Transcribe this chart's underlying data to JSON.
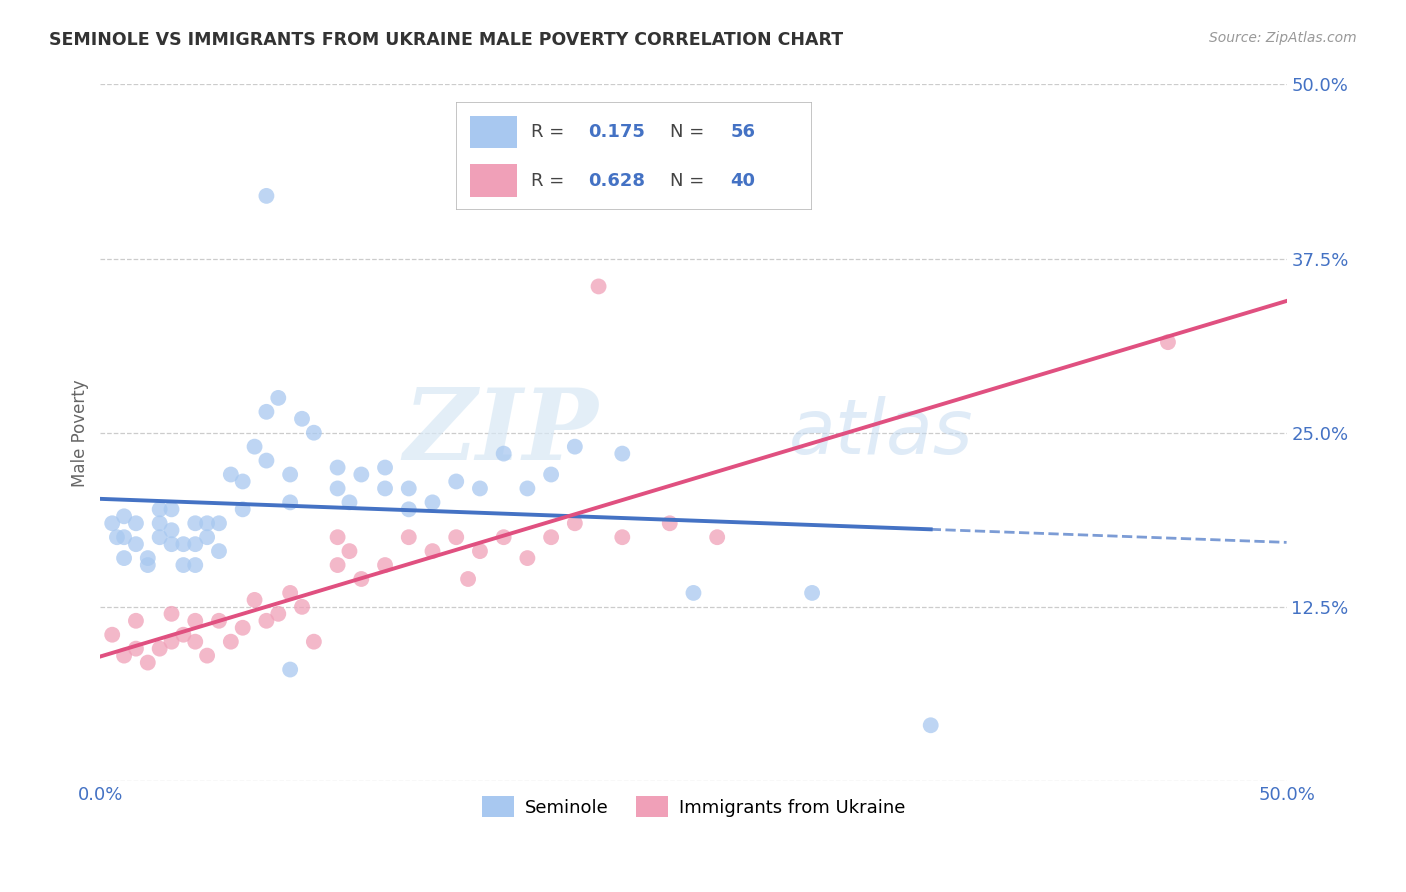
{
  "title": "SEMINOLE VS IMMIGRANTS FROM UKRAINE MALE POVERTY CORRELATION CHART",
  "source": "Source: ZipAtlas.com",
  "ylabel": "Male Poverty",
  "xlim": [
    0.0,
    0.5
  ],
  "ylim": [
    0.0,
    0.5
  ],
  "xticks": [
    0.0,
    0.1,
    0.2,
    0.3,
    0.4,
    0.5
  ],
  "yticks": [
    0.0,
    0.125,
    0.25,
    0.375,
    0.5
  ],
  "watermark_zip": "ZIP",
  "watermark_atlas": "atlas",
  "background_color": "#FFFFFF",
  "grid_color": "#CCCCCC",
  "series": [
    {
      "name": "Seminole",
      "R": 0.175,
      "N": 56,
      "color": "#A8C8F0",
      "edge_color": "#A8C8F0",
      "trend_color": "#4472C4",
      "trend_style_solid": true,
      "trend_extends_dashed": true,
      "x": [
        0.005,
        0.007,
        0.01,
        0.01,
        0.01,
        0.015,
        0.015,
        0.02,
        0.02,
        0.025,
        0.025,
        0.025,
        0.03,
        0.03,
        0.03,
        0.035,
        0.035,
        0.04,
        0.04,
        0.04,
        0.045,
        0.045,
        0.05,
        0.05,
        0.055,
        0.06,
        0.06,
        0.065,
        0.07,
        0.07,
        0.075,
        0.08,
        0.08,
        0.085,
        0.09,
        0.1,
        0.1,
        0.105,
        0.11,
        0.12,
        0.12,
        0.13,
        0.13,
        0.14,
        0.15,
        0.16,
        0.17,
        0.18,
        0.19,
        0.2,
        0.22,
        0.25,
        0.3,
        0.35,
        0.07,
        0.08
      ],
      "y": [
        0.185,
        0.175,
        0.16,
        0.175,
        0.19,
        0.17,
        0.185,
        0.155,
        0.16,
        0.175,
        0.185,
        0.195,
        0.17,
        0.18,
        0.195,
        0.155,
        0.17,
        0.155,
        0.17,
        0.185,
        0.175,
        0.185,
        0.165,
        0.185,
        0.22,
        0.195,
        0.215,
        0.24,
        0.23,
        0.265,
        0.275,
        0.2,
        0.22,
        0.26,
        0.25,
        0.21,
        0.225,
        0.2,
        0.22,
        0.21,
        0.225,
        0.195,
        0.21,
        0.2,
        0.215,
        0.21,
        0.235,
        0.21,
        0.22,
        0.24,
        0.235,
        0.135,
        0.135,
        0.04,
        0.42,
        0.08
      ]
    },
    {
      "name": "Immigrants from Ukraine",
      "R": 0.628,
      "N": 40,
      "color": "#F0A0B8",
      "edge_color": "#F0A0B8",
      "trend_color": "#E05080",
      "trend_style_solid": true,
      "trend_extends_dashed": false,
      "x": [
        0.005,
        0.01,
        0.015,
        0.015,
        0.02,
        0.025,
        0.03,
        0.03,
        0.035,
        0.04,
        0.04,
        0.045,
        0.05,
        0.055,
        0.06,
        0.065,
        0.07,
        0.075,
        0.08,
        0.085,
        0.09,
        0.1,
        0.1,
        0.105,
        0.11,
        0.12,
        0.13,
        0.14,
        0.15,
        0.155,
        0.16,
        0.17,
        0.18,
        0.19,
        0.2,
        0.22,
        0.24,
        0.26,
        0.45,
        0.21
      ],
      "y": [
        0.105,
        0.09,
        0.095,
        0.115,
        0.085,
        0.095,
        0.1,
        0.12,
        0.105,
        0.1,
        0.115,
        0.09,
        0.115,
        0.1,
        0.11,
        0.13,
        0.115,
        0.12,
        0.135,
        0.125,
        0.1,
        0.175,
        0.155,
        0.165,
        0.145,
        0.155,
        0.175,
        0.165,
        0.175,
        0.145,
        0.165,
        0.175,
        0.16,
        0.175,
        0.185,
        0.175,
        0.185,
        0.175,
        0.315,
        0.355
      ]
    }
  ]
}
